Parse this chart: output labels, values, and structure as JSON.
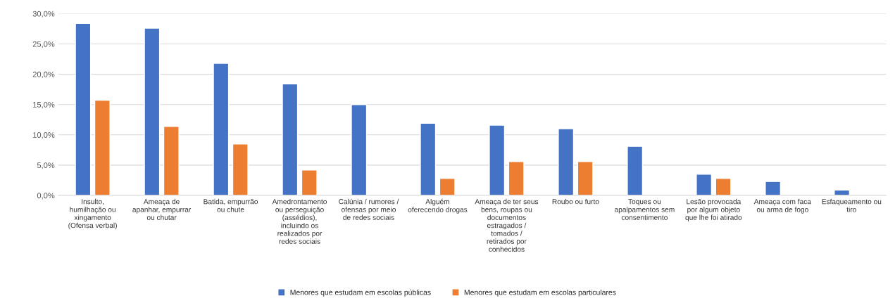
{
  "chart_data": {
    "type": "bar",
    "categories": [
      "Insulto,\nhumilhação ou\nxingamento\n(Ofensa verbal)",
      "Ameaça de\napanhar, empurrar\nou chutar",
      "Batida, empurrão\nou chute",
      "Amedrontamento\nou perseguição\n(assédios),\nincluindo os\nrealizados por\nredes sociais",
      "Calúnia / rumores /\nofensas por meio\nde redes sociais",
      "Alguém\noferecendo drogas",
      "Ameaça de ter seus\nbens, roupas ou\ndocumentos\nestragados /\ntomados /\nretirados por\nconhecidos",
      "Roubo ou furto",
      "Toques ou\napalpamentos sem\nconsentimento",
      "Lesão provocada\npor algum objeto\nque lhe foi atirado",
      "Ameaça com faca\nou arma de fogo",
      "Esfaqueamento ou\ntiro"
    ],
    "series": [
      {
        "name": "Menores que estudam em escolas públicas",
        "color": "#4472c4",
        "values": [
          28.4,
          27.6,
          21.8,
          18.4,
          15.0,
          11.9,
          11.6,
          11.0,
          8.1,
          3.5,
          2.3,
          0.9
        ]
      },
      {
        "name": "Menores que estudam em escolas particulares",
        "color": "#ed7d31",
        "values": [
          15.7,
          11.4,
          8.5,
          4.2,
          null,
          2.8,
          5.6,
          5.6,
          null,
          2.8,
          null,
          null
        ]
      }
    ],
    "ylim": [
      0,
      30
    ],
    "yticks": [
      {
        "value": 0,
        "label": "0,0%"
      },
      {
        "value": 5,
        "label": "5,0%"
      },
      {
        "value": 10,
        "label": "10,0%"
      },
      {
        "value": 15,
        "label": "15,0%"
      },
      {
        "value": 20,
        "label": "20,0%"
      },
      {
        "value": 25,
        "label": "25,0%"
      },
      {
        "value": 30,
        "label": "30,0%"
      }
    ],
    "grid": "y",
    "legend": "bottom"
  }
}
